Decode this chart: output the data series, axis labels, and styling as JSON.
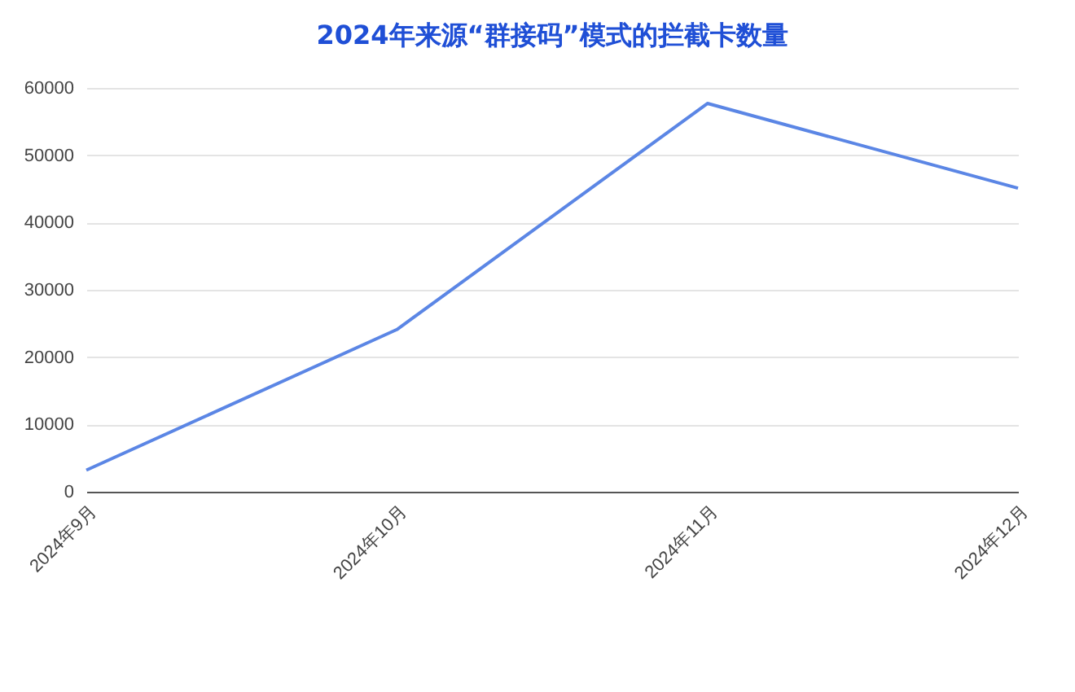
{
  "chart_data": {
    "type": "line",
    "title": "2024年来源“群接码”模式的拦截卡数量",
    "categories": [
      "2024年9月",
      "2024年10月",
      "2024年11月",
      "2024年12月"
    ],
    "series": [
      {
        "color": "#5b86e5",
        "values": [
          3200,
          24100,
          57700,
          45100
        ]
      }
    ],
    "ylim": [
      0,
      60000
    ],
    "yticks": [
      0,
      10000,
      20000,
      30000,
      40000,
      50000,
      60000
    ],
    "grid": "y",
    "legend": false,
    "marker": "none",
    "line_style": "solid"
  }
}
